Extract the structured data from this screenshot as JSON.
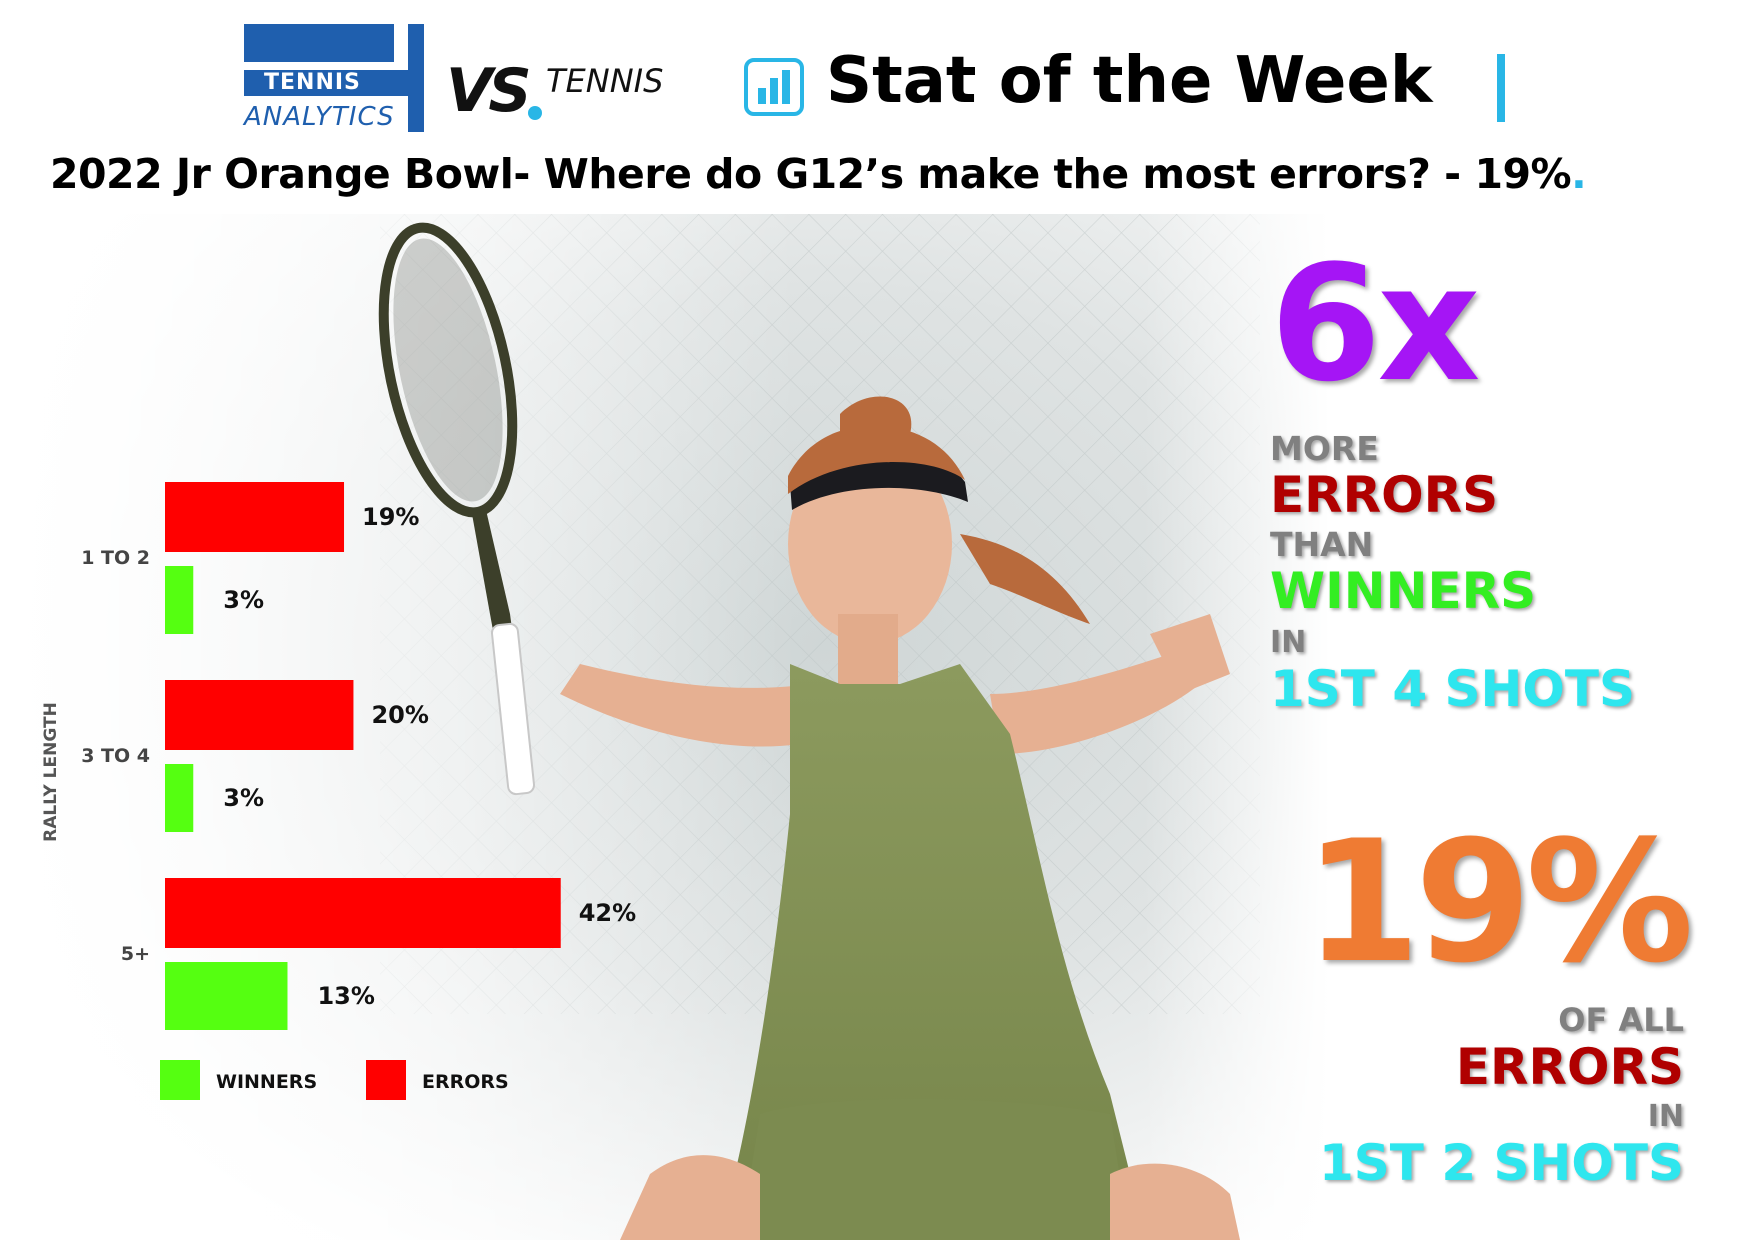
{
  "header": {
    "logo_tennis": "TENNIS",
    "logo_analytics": "ANALYTICS",
    "logo_vs": "VS",
    "logo_vs_word": "TENNIS",
    "stat_title": "Stat of the Week",
    "subtitle": "2022 Jr Orange Bowl- Where do G12’s make the most errors? - 19%",
    "subtitle_dot": "."
  },
  "callout_top": {
    "big": "6x",
    "line1": "MORE",
    "line2": "ERRORS",
    "line3": "THAN",
    "line4": "WINNERS",
    "line5": "IN",
    "line6": "1ST 4 SHOTS"
  },
  "callout_bottom": {
    "big": "19%",
    "line1": "OF ALL",
    "line2": "ERRORS",
    "line3": "IN",
    "line4": "1ST 2 SHOTS"
  },
  "colors": {
    "errors": "#ff0000",
    "winners": "#55ff11",
    "purple": "#a515f5",
    "orange": "#ef7b33",
    "dark_red": "#b00000",
    "bright_green": "#33ee22",
    "cyan": "#2ee6ee",
    "gray_text": "#808080",
    "accent_blue": "#29b6e6"
  },
  "chart_data": {
    "type": "bar",
    "orientation": "horizontal",
    "ylabel": "RALLY LENGTH",
    "categories": [
      "1 TO 2",
      "3 TO 4",
      "5+"
    ],
    "series": [
      {
        "name": "ERRORS",
        "values": [
          19,
          20,
          42
        ],
        "labels": [
          "19%",
          "20%",
          "42%"
        ]
      },
      {
        "name": "WINNERS",
        "values": [
          3,
          3,
          13
        ],
        "labels": [
          "3%",
          "3%",
          "13%"
        ]
      }
    ],
    "legend": [
      {
        "name": "WINNERS"
      },
      {
        "name": "ERRORS"
      }
    ],
    "legend_position": "bottom-left",
    "xlim": [
      0,
      45
    ],
    "grid": false
  }
}
